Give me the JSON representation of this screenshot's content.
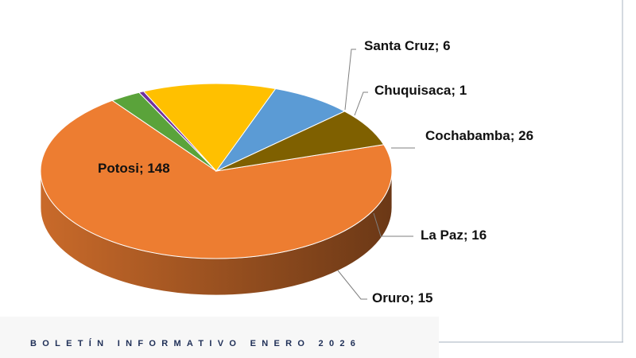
{
  "chart_data": {
    "type": "pie",
    "title": "",
    "slices": [
      {
        "label": "Potosi",
        "value": 148,
        "color": "#ED7D31",
        "display": "Potosi; 148"
      },
      {
        "label": "Santa Cruz",
        "value": 6,
        "color": "#5AA33A",
        "display": "Santa Cruz; 6"
      },
      {
        "label": "Chuquisaca",
        "value": 1,
        "color": "#7030A0",
        "display": "Chuquisaca; 1"
      },
      {
        "label": "Cochabamba",
        "value": 26,
        "color": "#FFC000",
        "display": "Cochabamba; 26"
      },
      {
        "label": "La Paz",
        "value": 16,
        "color": "#5B9BD5",
        "display": "La Paz; 16"
      },
      {
        "label": "Oruro",
        "value": 15,
        "color": "#7F6000",
        "display": "Oruro; 15"
      }
    ],
    "style": "3d-pie",
    "legend": "none",
    "data_labels": "category; value"
  },
  "footer": {
    "text": "BOLETÍN INFORMATIVO ENERO 2026"
  },
  "colors": {
    "frame": "#b8c0cc",
    "footer_text": "#1f2f57"
  }
}
